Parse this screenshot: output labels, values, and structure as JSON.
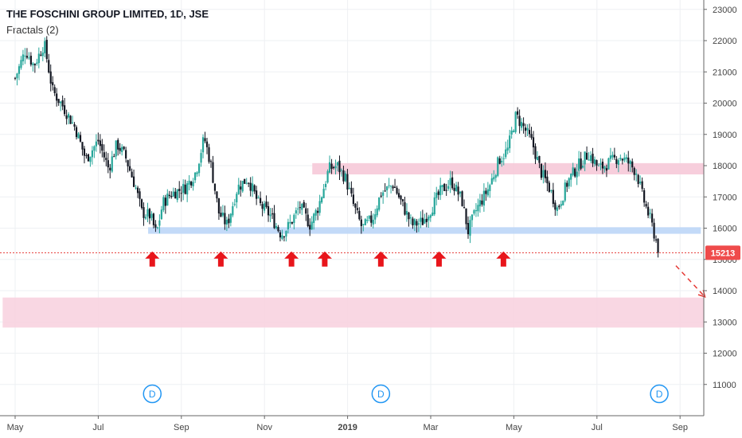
{
  "header": {
    "title": "THE FOSCHINI GROUP LIMITED, 1D, JSE",
    "study": "Fractals (2)"
  },
  "colors": {
    "bull": "#26a69a",
    "bear": "#131722",
    "support_zone": "#bcd6f7",
    "resistance_zone": "#f6c9d8",
    "target_zone": "#f8d3e0",
    "arrow": "#e8151b",
    "price_line": "#e53935",
    "price_badge": "#ef4b4b",
    "event_marker": "#2196f3",
    "grid": "#eef0f3",
    "axis_text": "#444"
  },
  "chart_data": {
    "type": "candlestick",
    "title": "THE FOSCHINI GROUP LIMITED, 1D, JSE",
    "x_labels": [
      "May",
      "Jul",
      "Sep",
      "Nov",
      "2019",
      "Mar",
      "May",
      "Jul",
      "Sep"
    ],
    "x_label_months": [
      0,
      2,
      4,
      6,
      8,
      10,
      12,
      14,
      16
    ],
    "y_ticks": [
      11000,
      12000,
      13000,
      14000,
      15000,
      16000,
      17000,
      18000,
      19000,
      20000,
      21000,
      22000,
      23000
    ],
    "y_range": [
      10000,
      23300
    ],
    "last_price": 15213,
    "last_price_label": "15213",
    "price_path": [
      [
        0.0,
        20800
      ],
      [
        0.25,
        21700
      ],
      [
        0.45,
        21200
      ],
      [
        0.7,
        21900
      ],
      [
        0.9,
        20400
      ],
      [
        1.15,
        19900
      ],
      [
        1.45,
        19200
      ],
      [
        1.7,
        18200
      ],
      [
        2.0,
        18800
      ],
      [
        2.25,
        17900
      ],
      [
        2.45,
        18700
      ],
      [
        2.65,
        18300
      ],
      [
        2.9,
        17300
      ],
      [
        3.05,
        16500
      ],
      [
        3.25,
        16400
      ],
      [
        3.4,
        15800
      ],
      [
        3.55,
        16800
      ],
      [
        3.75,
        17100
      ],
      [
        4.1,
        17300
      ],
      [
        4.35,
        17800
      ],
      [
        4.55,
        18900
      ],
      [
        4.7,
        18100
      ],
      [
        4.9,
        16500
      ],
      [
        5.1,
        16100
      ],
      [
        5.35,
        17300
      ],
      [
        5.6,
        17600
      ],
      [
        5.85,
        16800
      ],
      [
        6.15,
        16400
      ],
      [
        6.4,
        15800
      ],
      [
        6.6,
        16100
      ],
      [
        6.85,
        16700
      ],
      [
        7.1,
        16100
      ],
      [
        7.3,
        16700
      ],
      [
        7.55,
        17900
      ],
      [
        7.75,
        18000
      ],
      [
        7.95,
        17600
      ],
      [
        8.15,
        16700
      ],
      [
        8.35,
        16000
      ],
      [
        8.6,
        16300
      ],
      [
        8.8,
        17100
      ],
      [
        9.1,
        17400
      ],
      [
        9.3,
        16800
      ],
      [
        9.55,
        16100
      ],
      [
        9.8,
        16200
      ],
      [
        10.0,
        16600
      ],
      [
        10.25,
        17200
      ],
      [
        10.5,
        17500
      ],
      [
        10.75,
        16900
      ],
      [
        10.9,
        15900
      ],
      [
        11.1,
        16600
      ],
      [
        11.4,
        17300
      ],
      [
        11.65,
        18200
      ],
      [
        11.85,
        18500
      ],
      [
        12.05,
        19600
      ],
      [
        12.25,
        19200
      ],
      [
        12.45,
        18700
      ],
      [
        12.65,
        17800
      ],
      [
        12.85,
        17300
      ],
      [
        13.05,
        16600
      ],
      [
        13.3,
        17500
      ],
      [
        13.55,
        18000
      ],
      [
        13.8,
        18400
      ],
      [
        14.05,
        17900
      ],
      [
        14.3,
        18100
      ],
      [
        14.55,
        18300
      ],
      [
        14.75,
        18100
      ],
      [
        14.95,
        17800
      ],
      [
        15.1,
        17000
      ],
      [
        15.3,
        16200
      ],
      [
        15.5,
        15213
      ]
    ],
    "annotations": {
      "support_zone": {
        "x_range": [
          3.2,
          16.5
        ],
        "y_range": [
          15820,
          16030
        ]
      },
      "resistance_zone": {
        "x_range": [
          7.15,
          16.75
        ],
        "y_range": [
          17720,
          18080
        ]
      },
      "target_zone": {
        "x_range": [
          -0.3,
          17.6
        ],
        "y_range": [
          12820,
          13780
        ]
      },
      "fractal_arrows_x": [
        3.3,
        4.95,
        6.65,
        7.45,
        8.8,
        10.2,
        11.75
      ],
      "fractal_arrows_price": 15000,
      "projection": {
        "from": [
          15.9,
          14800
        ],
        "to": [
          16.6,
          13800
        ]
      },
      "event_markers": {
        "label": "D",
        "x": [
          3.3,
          8.8,
          15.5
        ],
        "price": 10700
      }
    }
  }
}
